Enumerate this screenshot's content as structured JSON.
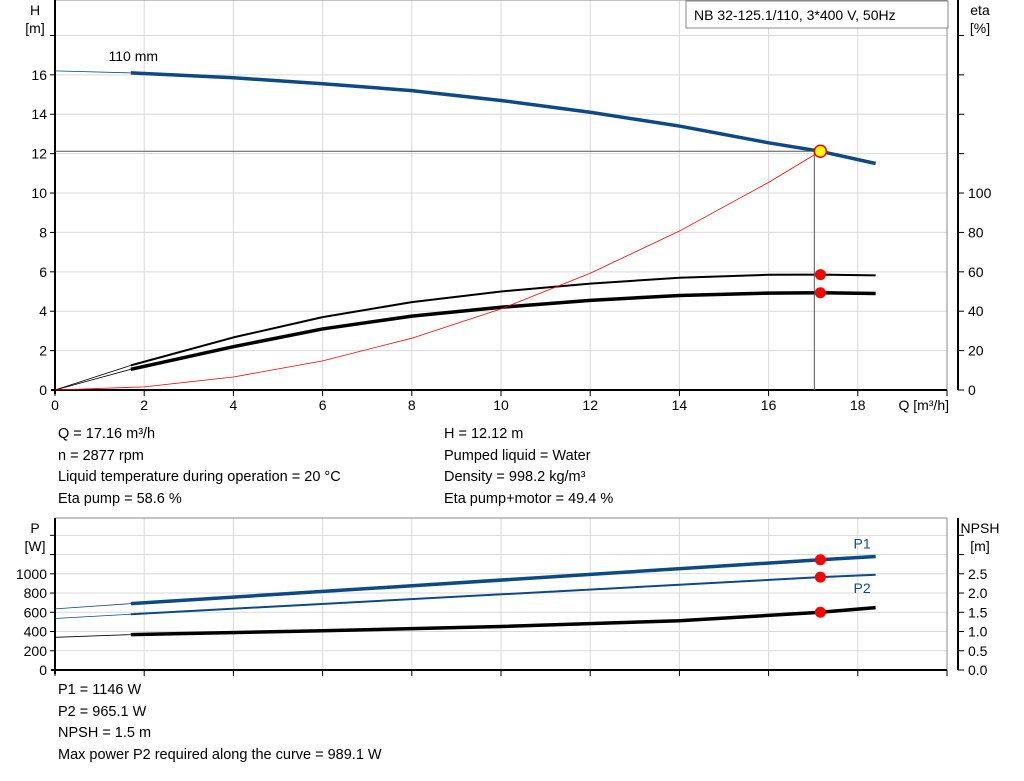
{
  "chart_data": [
    {
      "type": "line",
      "title_box": "NB 32-125.1/110, 3*400 V, 50Hz",
      "xlabel": "Q [m³/h]",
      "ylabel": "H",
      "ylabel_unit": "[m]",
      "y2label": "eta",
      "y2label_unit": "[%]",
      "xlim": [
        0,
        20
      ],
      "ylim": [
        0,
        19.8
      ],
      "y2lim": [
        0,
        198
      ],
      "xticks": [
        0,
        2,
        4,
        6,
        8,
        10,
        12,
        14,
        16,
        18
      ],
      "yticks": [
        0,
        2,
        4,
        6,
        8,
        10,
        12,
        14,
        16
      ],
      "y2ticks": [
        0,
        20,
        40,
        60,
        80,
        100
      ],
      "grid": true,
      "curve_label": "110 mm",
      "series": [
        {
          "key": "H",
          "color": "#0d4a85",
          "axis": "left",
          "x": [
            0,
            1.7,
            4,
            6,
            8,
            10,
            12,
            14,
            16,
            17.16,
            18.4
          ],
          "y": [
            16.2,
            16.1,
            15.85,
            15.55,
            15.2,
            14.7,
            14.1,
            13.4,
            12.55,
            12.12,
            11.5
          ]
        },
        {
          "key": "eta_pump",
          "color": "#000000",
          "axis": "right",
          "x": [
            0,
            1.7,
            4,
            6,
            8,
            10,
            12,
            14,
            16,
            17.16,
            18.4
          ],
          "y": [
            0,
            12.5,
            26.7,
            37,
            44.6,
            50,
            54,
            57,
            58.5,
            58.6,
            58.2
          ]
        },
        {
          "key": "eta_pump_motor",
          "color": "#000000",
          "axis": "right",
          "x": [
            0,
            1.7,
            4,
            6,
            8,
            10,
            12,
            14,
            16,
            17.16,
            18.4
          ],
          "y": [
            0,
            10.5,
            22,
            31,
            37.5,
            42,
            45.5,
            48,
            49.2,
            49.4,
            49
          ]
        },
        {
          "key": "system_curve",
          "color": "#ff0000",
          "axis": "left",
          "x": [
            0,
            2,
            4,
            6,
            8,
            10,
            12,
            14,
            16,
            17.16
          ],
          "y": [
            0,
            0.16,
            0.66,
            1.48,
            2.63,
            4.12,
            5.93,
            8.07,
            10.54,
            12.12
          ]
        }
      ],
      "duty_point": {
        "Q": 17.16,
        "H": 12.12,
        "eta_pump": 58.6,
        "eta_pump_motor": 49.4
      }
    },
    {
      "type": "line",
      "xlim": [
        0,
        20
      ],
      "ylabel": "P",
      "ylabel_unit": "[W]",
      "y2label": "NPSH",
      "y2label_unit": "[m]",
      "ylim": [
        0,
        1580
      ],
      "y2lim": [
        0,
        3.95
      ],
      "yticks": [
        0,
        200,
        400,
        600,
        800,
        1000
      ],
      "y2ticks": [
        "0.0",
        "0.5",
        "1.0",
        "1.5",
        "2.0",
        "2.5"
      ],
      "grid": true,
      "series": [
        {
          "name": "P1",
          "color": "#0d4a85",
          "axis": "left",
          "x": [
            0,
            1.7,
            17.16,
            18.4
          ],
          "y": [
            635,
            690,
            1146,
            1180
          ]
        },
        {
          "name": "P2",
          "color": "#0d4a85",
          "axis": "left",
          "x": [
            0,
            1.7,
            17.16,
            18.4
          ],
          "y": [
            535,
            580,
            965,
            990
          ]
        },
        {
          "key": "NPSH",
          "color": "#000000",
          "axis": "right",
          "x": [
            0,
            1.7,
            6,
            10,
            14,
            17.16,
            18.4
          ],
          "y": [
            0.85,
            0.92,
            1.02,
            1.13,
            1.28,
            1.5,
            1.62
          ]
        }
      ],
      "duty_point": {
        "Q": 17.16,
        "P1": 1146,
        "P2": 965.1,
        "NPSH": 1.5
      }
    }
  ],
  "info_top_left": [
    "Q = 17.16 m³/h",
    "n = 2877 rpm",
    "Liquid temperature during operation = 20 °C",
    "Eta pump = 58.6 %"
  ],
  "info_top_right": [
    "H = 12.12 m",
    "Pumped liquid = Water",
    "Density = 998.2 kg/m³",
    "Eta pump+motor = 49.4 %"
  ],
  "info_bottom": [
    "P1 = 1146 W",
    "P2 = 965.1 W",
    "NPSH = 1.5 m",
    "Max power P2 required along the curve = 989.1 W"
  ]
}
